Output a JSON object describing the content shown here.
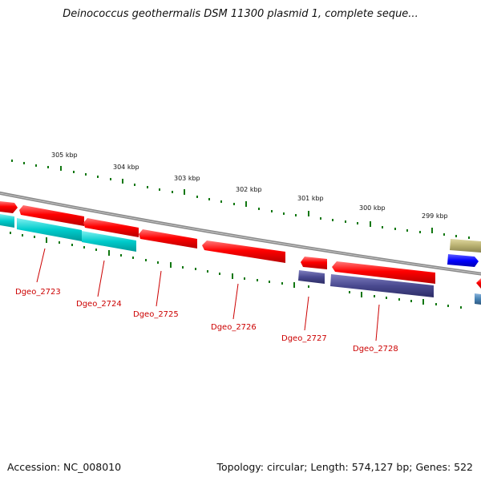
{
  "title": "Deinococcus geothermalis DSM 11300 plasmid 1, complete seque...",
  "footer": {
    "accession": "Accession: NC_008010",
    "summary": "Topology: circular; Length: 574,127 bp; Genes: 522"
  },
  "colors": {
    "forward_gene": "#ff0000",
    "reverse_gene_red": "#ff0000",
    "cog_cyan": "#00d0d0",
    "cog_purple": "#4a4a90",
    "cog_olive": "#b8b070",
    "cog_blue": "#0000ff",
    "cog_steel": "#4682b4",
    "tick_green": "#117711",
    "backbone": "#8a8a8a",
    "label_red": "#cc0000"
  },
  "scale_labels": [
    "305 kbp",
    "304 kbp",
    "303 kbp",
    "302 kbp",
    "301 kbp",
    "300 kbp",
    "299 kbp"
  ],
  "genes": [
    {
      "label": "Dgeo_2723"
    },
    {
      "label": "Dgeo_2724"
    },
    {
      "label": "Dgeo_2725"
    },
    {
      "label": "Dgeo_2726"
    },
    {
      "label": "Dgeo_2727"
    },
    {
      "label": "Dgeo_2728"
    }
  ]
}
